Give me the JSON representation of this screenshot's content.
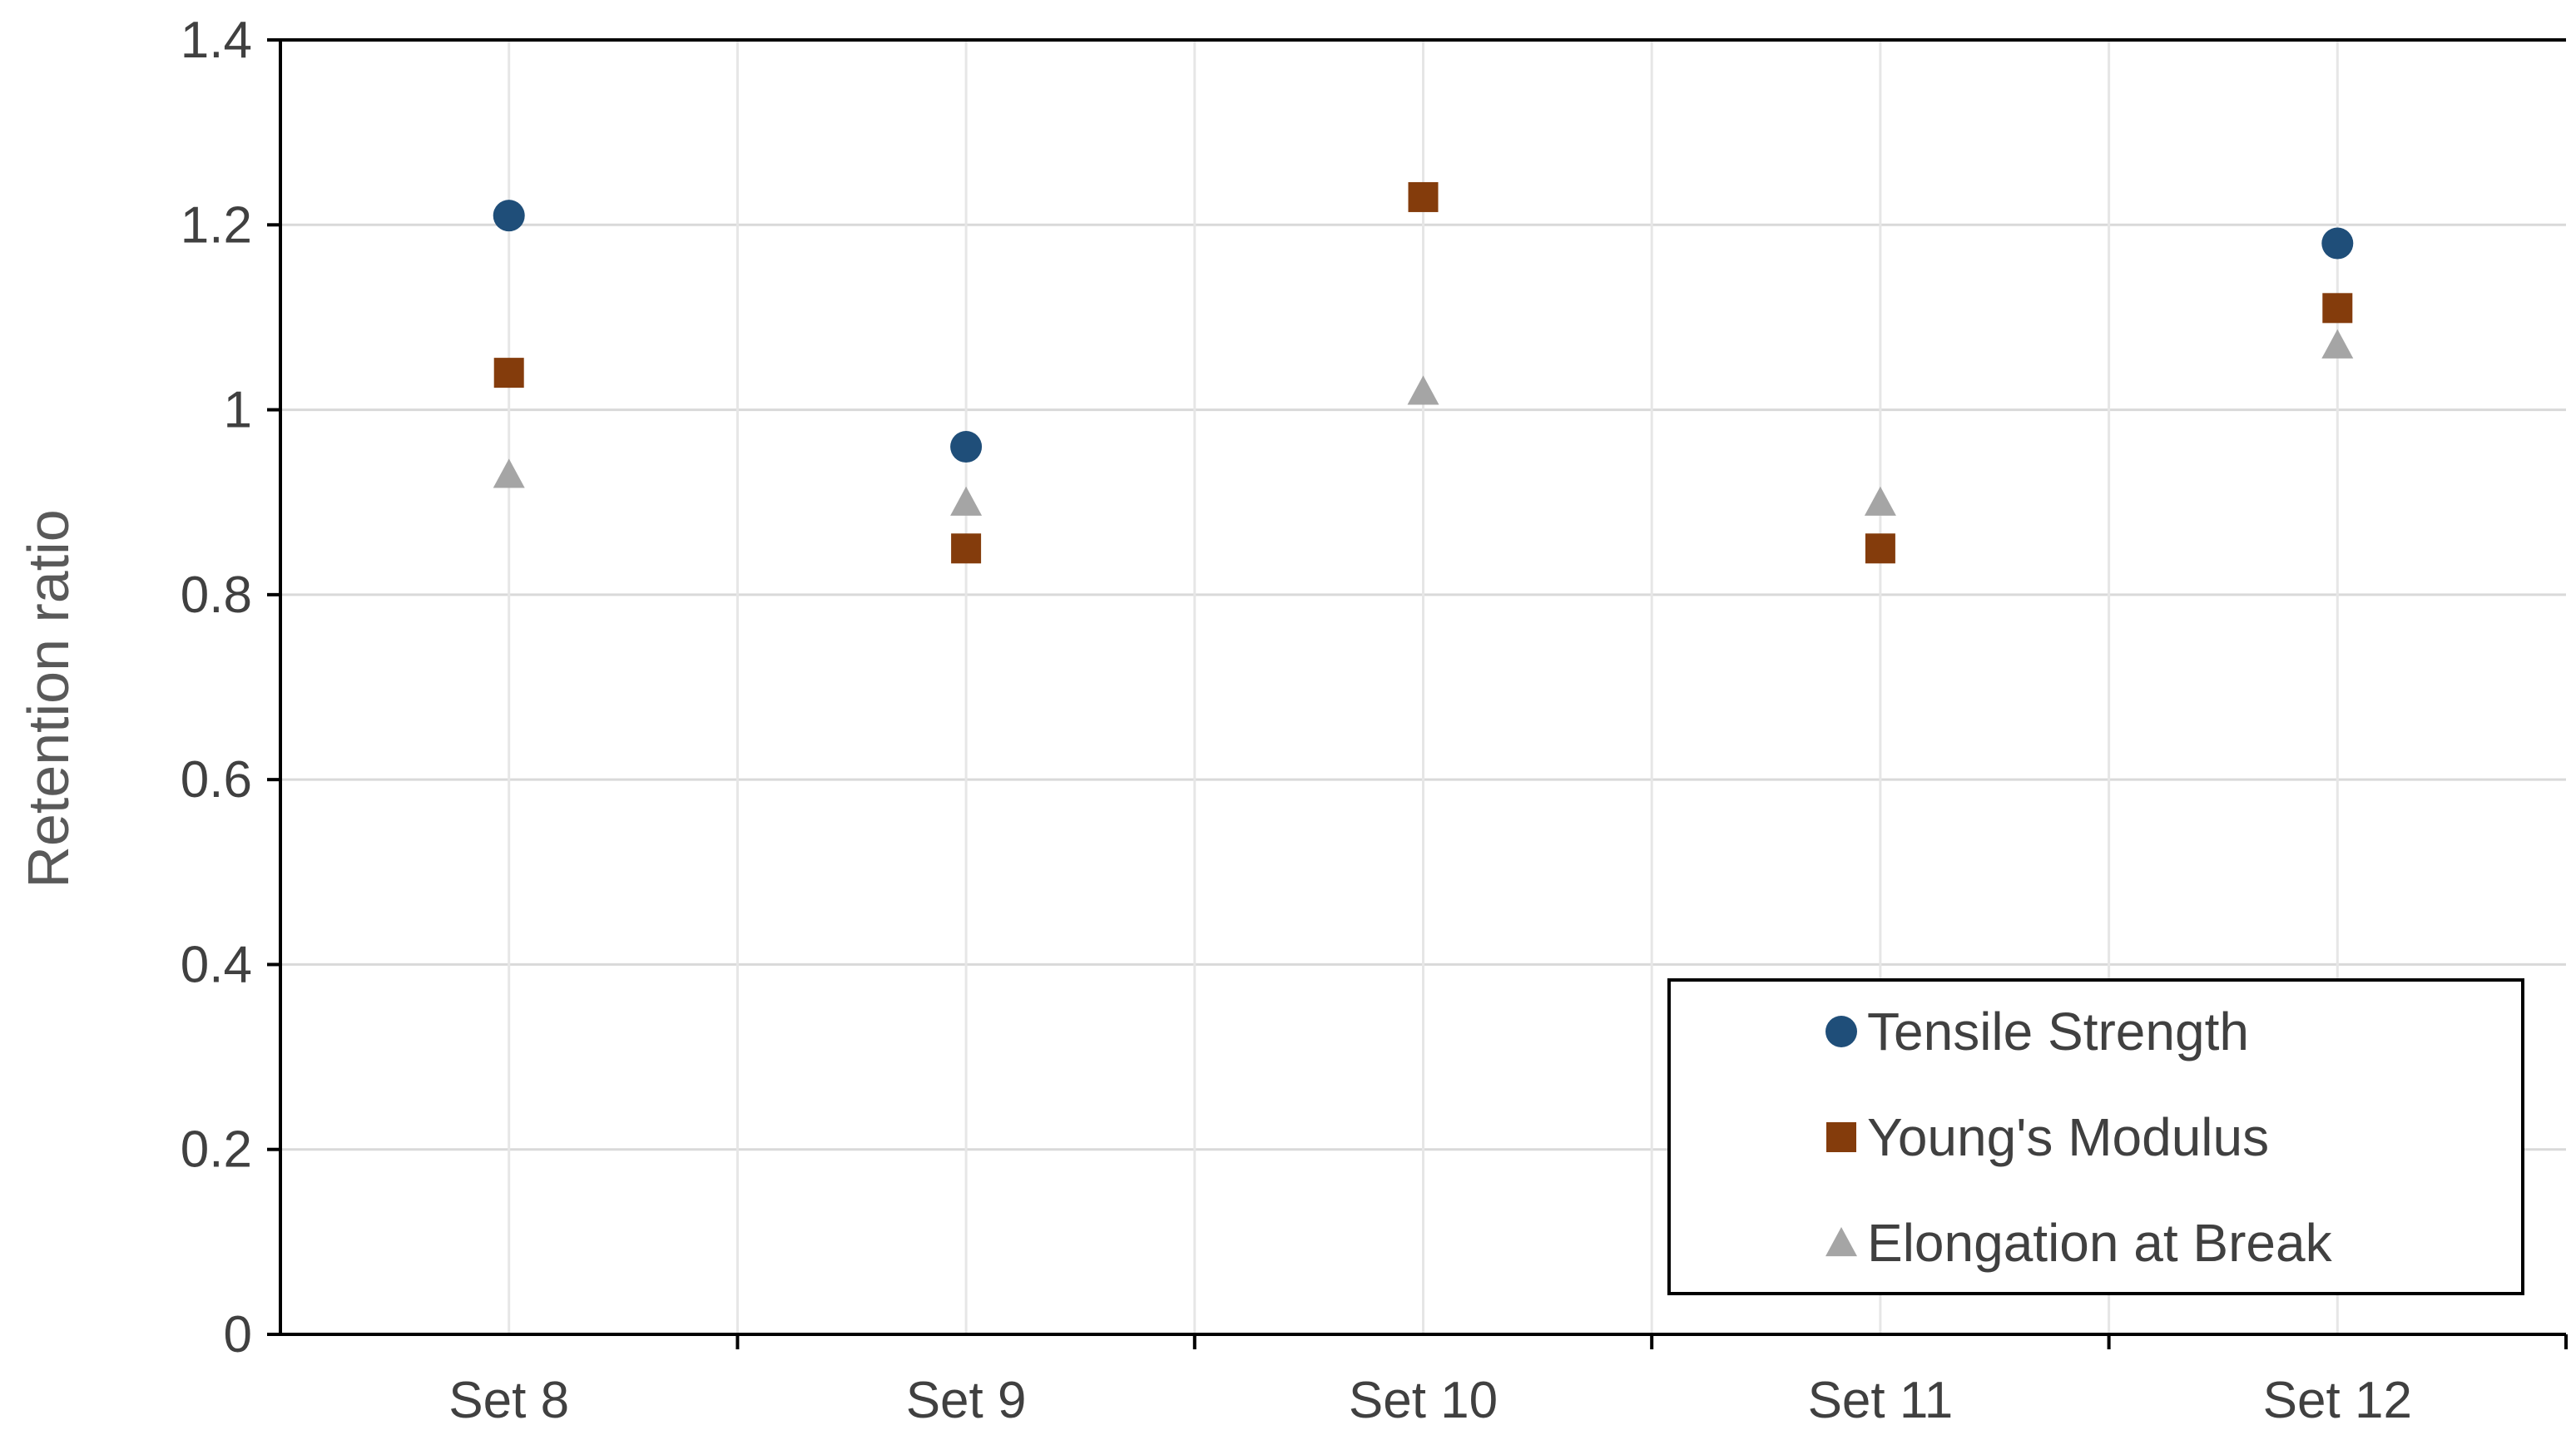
{
  "chart_data": {
    "type": "scatter",
    "categories": [
      "Set 8",
      "Set 9",
      "Set 10",
      "Set 11",
      "Set 12"
    ],
    "series": [
      {
        "name": "Tensile Strength",
        "marker": "circle",
        "color": "#1F4E79",
        "values": [
          1.21,
          0.96,
          null,
          null,
          1.18
        ]
      },
      {
        "name": "Young's Modulus",
        "marker": "square",
        "color": "#843C0C",
        "values": [
          1.04,
          0.85,
          1.23,
          0.85,
          1.11
        ]
      },
      {
        "name": "Elongation at Break",
        "marker": "triangle",
        "color": "#A5A5A5",
        "values": [
          0.93,
          0.9,
          1.02,
          0.9,
          1.07
        ]
      }
    ],
    "ylabel": "Retention ratio",
    "ylim": [
      0,
      1.4
    ],
    "yticks": [
      "0",
      "0.2",
      "0.4",
      "0.6",
      "0.8",
      "1",
      "1.2",
      "1.4"
    ],
    "grid": true,
    "legend_position": "bottom-right"
  }
}
